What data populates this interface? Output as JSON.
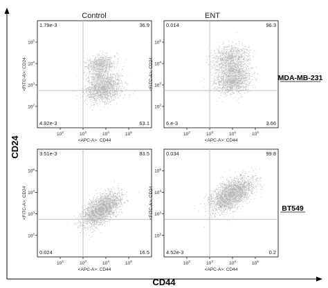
{
  "figure": {
    "outer_ylabel": "CD24",
    "outer_xlabel": "CD44",
    "column_titles": [
      "Control",
      "ENT"
    ],
    "row_labels": [
      "MDA-MB-231",
      "BT549"
    ],
    "colors": {
      "dots": "#7a7a7a",
      "core": "#bdbdbd",
      "axes": "#000000",
      "gate": "#b8b8b8"
    }
  },
  "chart_data": [
    {
      "type": "scatter",
      "name": "MDA-MB-231 Control",
      "xlabel": "<APC-A>: CD44",
      "ylabel": "<FITC-A>: CD24",
      "log_scale": true,
      "xlim": [
        10,
        1000000
      ],
      "ylim": [
        10,
        1000000
      ],
      "x_ticks": [
        "10^2",
        "10^3",
        "10^4",
        "10^5"
      ],
      "y_ticks": [
        "10^2",
        "10^3",
        "10^4",
        "10^5"
      ],
      "gate": {
        "x": 1000,
        "y": 550
      },
      "quadrants": {
        "upper_left": "1.79e-3",
        "upper_right": "36.9",
        "lower_left": "4.92e-3",
        "lower_right": "63.1"
      },
      "populations": [
        {
          "center": [
            3.9,
            2.85
          ],
          "spread": [
            0.38,
            0.32
          ],
          "rho": 0.25,
          "weight": 0.6
        },
        {
          "center": [
            3.75,
            3.95
          ],
          "spread": [
            0.3,
            0.22
          ],
          "rho": 0.1,
          "weight": 0.28
        },
        {
          "center": [
            3.7,
            3.4
          ],
          "spread": [
            0.22,
            0.35
          ],
          "rho": 0.0,
          "weight": 0.12
        }
      ]
    },
    {
      "type": "scatter",
      "name": "MDA-MB-231 ENT",
      "xlabel": "<APC-A>: CD44",
      "ylabel": "<FITC-A>: CD24",
      "log_scale": true,
      "xlim": [
        10,
        1000000
      ],
      "ylim": [
        10,
        1000000
      ],
      "x_ticks": [
        "10^2",
        "10^3",
        "10^4",
        "10^5"
      ],
      "y_ticks": [
        "10^2",
        "10^3",
        "10^4",
        "10^5"
      ],
      "gate": {
        "x": 1000,
        "y": 550
      },
      "quadrants": {
        "upper_left": "0.014",
        "upper_right": "96.3",
        "lower_left": "6.e-3",
        "lower_right": "3.66"
      },
      "populations": [
        {
          "center": [
            4.0,
            3.15
          ],
          "spread": [
            0.38,
            0.28
          ],
          "rho": 0.15,
          "weight": 0.45
        },
        {
          "center": [
            3.9,
            4.3
          ],
          "spread": [
            0.38,
            0.28
          ],
          "rho": 0.1,
          "weight": 0.3
        },
        {
          "center": [
            3.95,
            3.7
          ],
          "spread": [
            0.35,
            0.3
          ],
          "rho": 0.05,
          "weight": 0.25
        }
      ]
    },
    {
      "type": "scatter",
      "name": "BT549 Control",
      "xlabel": "<APC-A>: CD44",
      "ylabel": "<FITC-A>: CD24",
      "log_scale": true,
      "xlim": [
        10,
        1000000
      ],
      "ylim": [
        10,
        1000000
      ],
      "x_ticks": [
        "10^2",
        "10^3",
        "10^4",
        "10^5"
      ],
      "y_ticks": [
        "10^2",
        "10^3",
        "10^4",
        "10^5"
      ],
      "gate": {
        "x": 1000,
        "y": 550
      },
      "quadrants": {
        "upper_left": "3.51e-3",
        "upper_right": "83.5",
        "lower_left": "0.024",
        "lower_right": "16.5"
      },
      "populations": [
        {
          "center": [
            3.8,
            3.2
          ],
          "spread": [
            0.4,
            0.38
          ],
          "rho": 0.6,
          "weight": 1.0
        }
      ]
    },
    {
      "type": "scatter",
      "name": "BT549 ENT",
      "xlabel": "<APC-A>: CD44",
      "ylabel": "<FITC-A>: CD24",
      "log_scale": true,
      "xlim": [
        10,
        1000000
      ],
      "ylim": [
        10,
        1000000
      ],
      "x_ticks": [
        "10^2",
        "10^3",
        "10^4",
        "10^5"
      ],
      "y_ticks": [
        "10^2",
        "10^3",
        "10^4",
        "10^5"
      ],
      "gate": {
        "x": 1000,
        "y": 550
      },
      "quadrants": {
        "upper_left": "0.034",
        "upper_right": "99.8",
        "lower_left": "4.52e-3",
        "lower_right": "0.2"
      },
      "populations": [
        {
          "center": [
            3.95,
            3.9
          ],
          "spread": [
            0.45,
            0.38
          ],
          "rho": 0.55,
          "weight": 1.0
        }
      ]
    }
  ]
}
